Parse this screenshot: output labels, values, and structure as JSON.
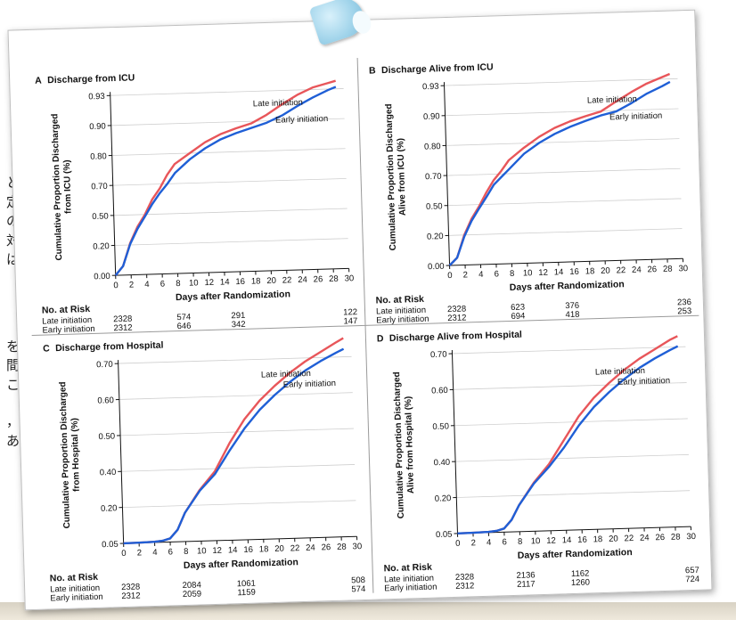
{
  "background": {
    "side_text": [
      "と",
      "定",
      "の",
      "対",
      "は",
      "を",
      "間",
      "こ",
      "，",
      "あ"
    ]
  },
  "colors": {
    "late": "#e8565a",
    "early": "#1f5fd6",
    "axis": "#111111",
    "grid": "#cfcfcf"
  },
  "chart_data": [
    {
      "type": "line",
      "panel_letter": "A",
      "title": "Discharge from ICU",
      "xlabel": "Days after Randomization",
      "ylabel": [
        "Cumulative Proportion Discharged",
        "from ICU (%)"
      ],
      "xlim": [
        0,
        30
      ],
      "xticks": [
        "0",
        "2",
        "4",
        "6",
        "8",
        "10",
        "12",
        "14",
        "16",
        "18",
        "20",
        "22",
        "24",
        "26",
        "28",
        "30"
      ],
      "y_breaks": [
        0.0,
        0.2,
        0.5,
        0.7,
        0.8,
        0.9,
        0.93
      ],
      "yticks": [
        "0.00",
        "0.20",
        "0.50",
        "0.70",
        "0.80",
        "0.90",
        "0.93"
      ],
      "series": [
        {
          "name": "Late initiation",
          "x": [
            0,
            1,
            2,
            3,
            4,
            5,
            6,
            7,
            8,
            10,
            12,
            14,
            16,
            18,
            20,
            22,
            24,
            26,
            28,
            29
          ],
          "y": [
            0.0,
            0.06,
            0.22,
            0.38,
            0.5,
            0.6,
            0.67,
            0.73,
            0.765,
            0.8,
            0.835,
            0.86,
            0.878,
            0.893,
            0.906,
            0.916,
            0.925,
            0.932,
            0.936,
            0.938
          ]
        },
        {
          "name": "Early initiation",
          "x": [
            0,
            1,
            2,
            3,
            4,
            5,
            6,
            7,
            8,
            10,
            12,
            14,
            16,
            18,
            20,
            22,
            24,
            26,
            28,
            29
          ],
          "y": [
            0.0,
            0.06,
            0.21,
            0.36,
            0.48,
            0.57,
            0.64,
            0.7,
            0.735,
            0.78,
            0.815,
            0.843,
            0.862,
            0.878,
            0.894,
            0.905,
            0.914,
            0.922,
            0.929,
            0.932
          ]
        }
      ],
      "annotations": {
        "late": "Late initiation",
        "early": "Early initiation"
      },
      "risk_table": {
        "header": "No. at Risk",
        "rows": [
          {
            "label": "Late initiation",
            "values": [
              "2328",
              "574",
              "291",
              "122"
            ]
          },
          {
            "label": "Early initiation",
            "values": [
              "2312",
              "646",
              "342",
              "147"
            ]
          }
        ],
        "days": [
          0,
          7,
          14,
          28
        ]
      }
    },
    {
      "type": "line",
      "panel_letter": "B",
      "title": "Discharge Alive from ICU",
      "xlabel": "Days after Randomization",
      "ylabel": [
        "Cumulative Proportion Discharged",
        "Alive from ICU (%)"
      ],
      "xlim": [
        0,
        30
      ],
      "xticks": [
        "0",
        "2",
        "4",
        "6",
        "8",
        "10",
        "12",
        "14",
        "16",
        "18",
        "20",
        "22",
        "24",
        "26",
        "28",
        "30"
      ],
      "y_breaks": [
        0.0,
        0.2,
        0.5,
        0.7,
        0.8,
        0.9,
        0.93
      ],
      "yticks": [
        "0.00",
        "0.20",
        "0.50",
        "0.70",
        "0.80",
        "0.90",
        "0.93"
      ],
      "series": [
        {
          "name": "Late initiation",
          "x": [
            0,
            1,
            2,
            3,
            4,
            5,
            6,
            7,
            8,
            10,
            12,
            14,
            16,
            18,
            20,
            22,
            24,
            26,
            28,
            29
          ],
          "y": [
            0.0,
            0.05,
            0.2,
            0.36,
            0.48,
            0.58,
            0.66,
            0.71,
            0.745,
            0.785,
            0.82,
            0.848,
            0.868,
            0.884,
            0.898,
            0.909,
            0.918,
            0.926,
            0.932,
            0.935
          ]
        },
        {
          "name": "Early initiation",
          "x": [
            0,
            1,
            2,
            3,
            4,
            5,
            6,
            7,
            8,
            10,
            12,
            14,
            16,
            18,
            20,
            22,
            24,
            26,
            28,
            29
          ],
          "y": [
            0.0,
            0.05,
            0.19,
            0.34,
            0.46,
            0.55,
            0.63,
            0.68,
            0.715,
            0.765,
            0.8,
            0.828,
            0.85,
            0.868,
            0.885,
            0.897,
            0.907,
            0.916,
            0.923,
            0.927
          ]
        }
      ],
      "annotations": {
        "late": "Late initiation",
        "early": "Early initiation"
      },
      "risk_table": {
        "header": "No. at Risk",
        "rows": [
          {
            "label": "Late initiation",
            "values": [
              "2328",
              "623",
              "376",
              "236"
            ]
          },
          {
            "label": "Early initiation",
            "values": [
              "2312",
              "694",
              "418",
              "253"
            ]
          }
        ],
        "days": [
          0,
          7,
          14,
          28
        ]
      }
    },
    {
      "type": "line",
      "panel_letter": "C",
      "title": "Discharge from Hospital",
      "xlabel": "Days after Randomization",
      "ylabel": [
        "Cumulative Proportion Discharged",
        "from Hospital (%)"
      ],
      "xlim": [
        0,
        30
      ],
      "xticks": [
        "0",
        "2",
        "4",
        "6",
        "8",
        "10",
        "12",
        "14",
        "16",
        "18",
        "20",
        "22",
        "24",
        "26",
        "28",
        "30"
      ],
      "y_breaks": [
        0.05,
        0.2,
        0.4,
        0.5,
        0.6,
        0.7
      ],
      "yticks": [
        "0.05",
        "0.20",
        "0.40",
        "0.50",
        "0.60",
        "0.70"
      ],
      "series": [
        {
          "name": "Late initiation",
          "x": [
            0,
            2,
            4,
            5,
            6,
            7,
            8,
            10,
            12,
            14,
            16,
            18,
            20,
            22,
            24,
            26,
            28,
            29
          ],
          "y": [
            0.05,
            0.051,
            0.053,
            0.056,
            0.065,
            0.1,
            0.17,
            0.285,
            0.385,
            0.47,
            0.535,
            0.585,
            0.625,
            0.66,
            0.69,
            0.715,
            0.74,
            0.752
          ]
        },
        {
          "name": "Early initiation",
          "x": [
            0,
            2,
            4,
            5,
            6,
            7,
            8,
            10,
            12,
            14,
            16,
            18,
            20,
            22,
            24,
            26,
            28,
            29
          ],
          "y": [
            0.05,
            0.051,
            0.053,
            0.056,
            0.065,
            0.1,
            0.17,
            0.28,
            0.37,
            0.45,
            0.51,
            0.56,
            0.6,
            0.635,
            0.665,
            0.69,
            0.712,
            0.722
          ]
        }
      ],
      "annotations": {
        "late": "Late initiation",
        "early": "Early initiation"
      },
      "risk_table": {
        "header": "No. at Risk",
        "rows": [
          {
            "label": "Late initiation",
            "values": [
              "2328",
              "2084",
              "1061",
              "508"
            ]
          },
          {
            "label": "Early initiation",
            "values": [
              "2312",
              "2059",
              "1159",
              "574"
            ]
          }
        ],
        "days": [
          0,
          7,
          14,
          28
        ]
      }
    },
    {
      "type": "line",
      "panel_letter": "D",
      "title": "Discharge Alive from Hospital",
      "xlabel": "Days after Randomization",
      "ylabel": [
        "Cumulative Proportion Discharged",
        "Alive from Hospital (%)"
      ],
      "xlim": [
        0,
        30
      ],
      "xticks": [
        "0",
        "2",
        "4",
        "6",
        "8",
        "10",
        "12",
        "14",
        "16",
        "18",
        "20",
        "22",
        "24",
        "26",
        "28",
        "30"
      ],
      "y_breaks": [
        0.05,
        0.2,
        0.4,
        0.5,
        0.6,
        0.7
      ],
      "yticks": [
        "0.05",
        "0.20",
        "0.40",
        "0.50",
        "0.60",
        "0.70"
      ],
      "series": [
        {
          "name": "Late initiation",
          "x": [
            0,
            2,
            4,
            5,
            6,
            7,
            8,
            10,
            12,
            14,
            16,
            18,
            20,
            22,
            24,
            26,
            28,
            29
          ],
          "y": [
            0.05,
            0.051,
            0.053,
            0.056,
            0.065,
            0.1,
            0.16,
            0.27,
            0.37,
            0.45,
            0.515,
            0.565,
            0.605,
            0.64,
            0.67,
            0.695,
            0.72,
            0.73
          ]
        },
        {
          "name": "Early initiation",
          "x": [
            0,
            2,
            4,
            5,
            6,
            7,
            8,
            10,
            12,
            14,
            16,
            18,
            20,
            22,
            24,
            26,
            28,
            29
          ],
          "y": [
            0.05,
            0.051,
            0.053,
            0.056,
            0.065,
            0.1,
            0.16,
            0.265,
            0.355,
            0.43,
            0.49,
            0.54,
            0.58,
            0.615,
            0.645,
            0.67,
            0.692,
            0.702
          ]
        }
      ],
      "annotations": {
        "late": "Late initiation",
        "early": "Early initiation"
      },
      "risk_table": {
        "header": "No. at Risk",
        "rows": [
          {
            "label": "Late initiation",
            "values": [
              "2328",
              "2136",
              "1162",
              "657"
            ]
          },
          {
            "label": "Early initiation",
            "values": [
              "2312",
              "2117",
              "1260",
              "724"
            ]
          }
        ],
        "days": [
          0,
          7,
          14,
          28
        ]
      }
    }
  ]
}
